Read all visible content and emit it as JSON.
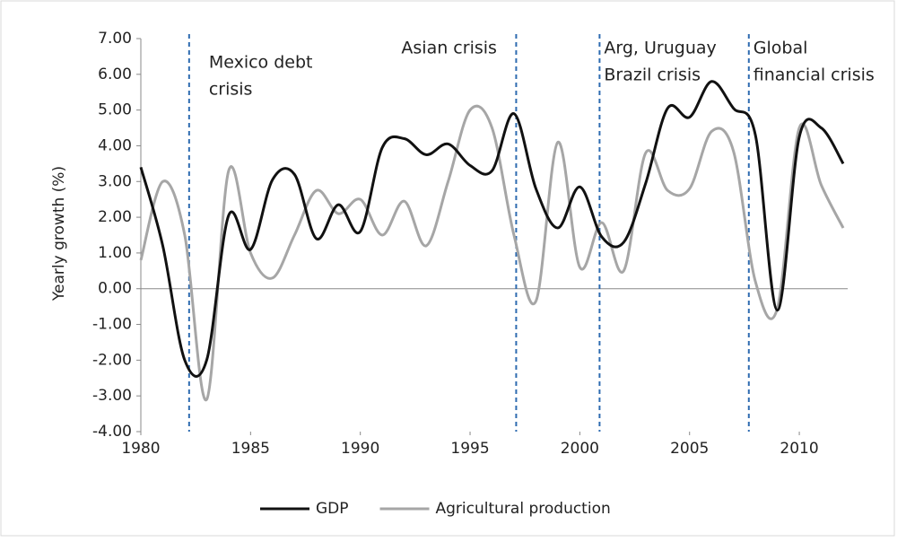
{
  "chart_data": {
    "type": "line",
    "y_label": "Yearly growth (%)",
    "x": [
      1980,
      1981,
      1982,
      1983,
      1984,
      1985,
      1986,
      1987,
      1988,
      1989,
      1990,
      1991,
      1992,
      1993,
      1994,
      1995,
      1996,
      1997,
      1998,
      1999,
      2000,
      2001,
      2002,
      2003,
      2004,
      2005,
      2006,
      2007,
      2008,
      2009,
      2010,
      2011,
      2012
    ],
    "series": [
      {
        "name": "GDP",
        "color": "#111111",
        "values": [
          3.4,
          1.2,
          -2.0,
          -2.0,
          2.05,
          1.1,
          3.05,
          3.2,
          1.4,
          2.35,
          1.6,
          3.95,
          4.2,
          3.75,
          4.05,
          3.45,
          3.3,
          4.9,
          2.8,
          1.7,
          2.85,
          1.45,
          1.3,
          2.95,
          5.05,
          4.8,
          5.8,
          5.05,
          4.3,
          -0.6,
          4.25,
          4.5,
          3.5
        ]
      },
      {
        "name": "Agricultural production",
        "color": "#a6a6a6",
        "values": [
          0.8,
          3.0,
          1.5,
          -3.1,
          3.3,
          1.0,
          0.3,
          1.5,
          2.75,
          2.1,
          2.5,
          1.5,
          2.45,
          1.2,
          3.0,
          5.0,
          4.5,
          1.5,
          -0.35,
          4.1,
          0.6,
          1.85,
          0.5,
          3.8,
          2.75,
          2.8,
          4.4,
          3.85,
          0.2,
          -0.55,
          4.5,
          2.9,
          1.7
        ]
      }
    ],
    "xlim": [
      1980,
      2012
    ],
    "xticks": [
      1980,
      1985,
      1990,
      1995,
      2000,
      2005,
      2010
    ],
    "ylim": [
      -4,
      7
    ],
    "yticks": [
      {
        "value": -4,
        "label": "-4.00"
      },
      {
        "value": -3,
        "label": "-3.00"
      },
      {
        "value": -2,
        "label": "-2.00"
      },
      {
        "value": -1,
        "label": "-1.00"
      },
      {
        "value": 0,
        "label": "0.00"
      },
      {
        "value": 1,
        "label": "1.00"
      },
      {
        "value": 2,
        "label": "2.00"
      },
      {
        "value": 3,
        "label": "3.00"
      },
      {
        "value": 4,
        "label": "4.00"
      },
      {
        "value": 5,
        "label": "5.00"
      },
      {
        "value": 6,
        "label": "6.00"
      },
      {
        "value": 7,
        "label": "7.00"
      }
    ],
    "annotations": [
      {
        "x": 1982.2,
        "lines": [
          "Mexico debt",
          "crisis"
        ]
      },
      {
        "x": 1997.1,
        "lines": [
          "Asian crisis"
        ]
      },
      {
        "x": 2000.9,
        "lines": [
          "Arg, Uruguay",
          "Brazil crisis"
        ]
      },
      {
        "x": 2007.7,
        "lines": [
          "Global",
          "financial crisis"
        ]
      }
    ],
    "legend": "bottom"
  }
}
